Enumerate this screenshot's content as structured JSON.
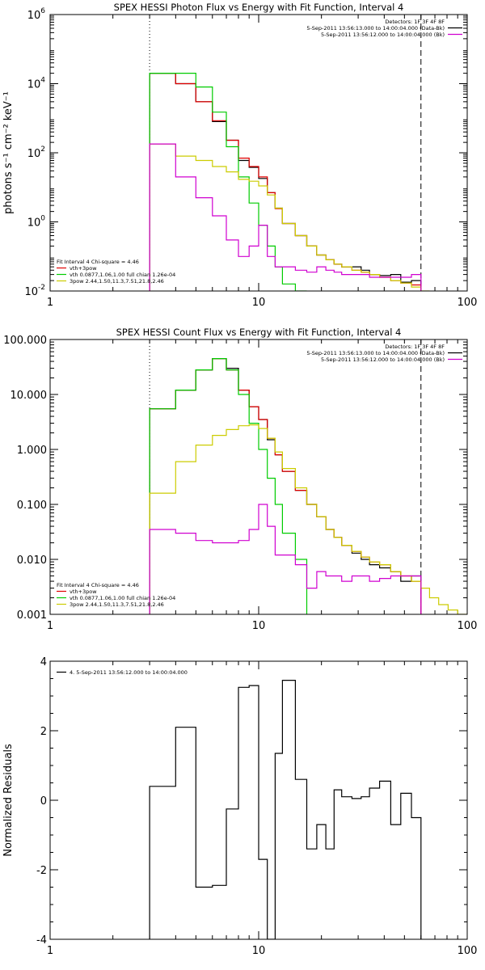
{
  "chart_data": [
    {
      "id": "photon",
      "type": "line",
      "step": true,
      "title": "SPEX HESSI Photon Flux vs Energy with Fit Function, Interval 4",
      "ylabel": "photons s⁻¹ cm⁻² keV⁻¹",
      "xlabel": "",
      "xscale": "log",
      "yscale": "log",
      "xlim": [
        1,
        100
      ],
      "ylim": [
        0.01,
        1000000
      ],
      "x_ticks": [
        {
          "value": 1,
          "label": "1"
        },
        {
          "value": 10,
          "label": "10"
        },
        {
          "value": 100,
          "label": "100"
        }
      ],
      "y_ticks": [
        {
          "value": 0.01,
          "base": "10",
          "exp": "-2"
        },
        {
          "value": 1,
          "base": "10",
          "exp": "0"
        },
        {
          "value": 100,
          "base": "10",
          "exp": "2"
        },
        {
          "value": 10000,
          "base": "10",
          "exp": "4"
        },
        {
          "value": 1000000,
          "base": "10",
          "exp": "6"
        }
      ],
      "vlines": [
        {
          "x": 3,
          "style": "dotted"
        },
        {
          "x": 60,
          "style": "dashed"
        }
      ],
      "legend_top": {
        "placement": "top-right",
        "header": "Detectors: 1F 3F 4F 8F",
        "entries": [
          {
            "text": "5-Sep-2011 13:56:13.000 to 14:00:04.000 (Data-Bk)",
            "color": "#000000"
          },
          {
            "text": "5-Sep-2011 13:56:12.000 to 14:00:04.000 (Bk)",
            "color": "#d000d0"
          }
        ]
      },
      "legend_bottom": {
        "placement": "bottom-left",
        "header": "Fit Interval 4   Chi-square = 4.46",
        "entries": [
          {
            "text": "vth+3pow",
            "color": "#e00000"
          },
          {
            "text": "vth 0.0877,1.06,1.00  full chian 1.26e-04",
            "color": "#00cc00"
          },
          {
            "text": "3pow 2.44,1.50,11.3,7.51,21.8,2.46",
            "color": "#cccc00"
          }
        ]
      },
      "series": [
        {
          "color": "#000000",
          "edges": [
            3,
            4,
            5,
            6,
            7,
            8,
            9,
            10,
            11,
            12,
            13,
            15,
            17,
            19,
            21,
            23,
            25,
            28,
            31,
            34,
            38,
            43,
            48,
            54,
            60
          ],
          "values": [
            20000,
            10000,
            3000,
            800,
            230,
            60,
            38,
            18,
            7,
            2.5,
            0.9,
            0.4,
            0.2,
            0.11,
            0.08,
            0.06,
            0.05,
            0.05,
            0.04,
            0.03,
            0.028,
            0.03,
            0.018,
            0.02
          ]
        },
        {
          "color": "#e00000",
          "edges": [
            3,
            4,
            5,
            6,
            7,
            8,
            9,
            10,
            11,
            12,
            13,
            15,
            17,
            19,
            21,
            23,
            25,
            28,
            31,
            34,
            38,
            43,
            48,
            54,
            60
          ],
          "values": [
            20000,
            10000,
            3000,
            850,
            230,
            70,
            40,
            20,
            7,
            2.4,
            0.9,
            0.4,
            0.2,
            0.11,
            0.08,
            0.06,
            0.05,
            0.04,
            0.035,
            0.03,
            0.025,
            0.02,
            0.017,
            0.015
          ]
        },
        {
          "color": "#00cc00",
          "edges": [
            3,
            4,
            5,
            6,
            7,
            8,
            9,
            10,
            11,
            12,
            13,
            15,
            17
          ],
          "values": [
            20000,
            20000,
            8000,
            1500,
            150,
            20,
            3.5,
            0.8,
            0.2,
            0.05,
            0.016,
            0.01
          ]
        },
        {
          "color": "#cccc00",
          "edges": [
            3,
            4,
            5,
            6,
            7,
            8,
            9,
            10,
            11,
            12,
            13,
            15,
            17,
            19,
            21,
            23,
            25,
            28,
            31,
            34,
            38,
            43,
            48,
            54,
            60,
            66
          ],
          "values": [
            180,
            80,
            60,
            40,
            28,
            17,
            15,
            11,
            6,
            2.5,
            0.9,
            0.4,
            0.2,
            0.11,
            0.08,
            0.06,
            0.05,
            0.04,
            0.035,
            0.03,
            0.025,
            0.02,
            0.017,
            0.013,
            0.01
          ]
        },
        {
          "color": "#d000d0",
          "edges": [
            3,
            4,
            5,
            6,
            7,
            8,
            9,
            10,
            11,
            12,
            13,
            15,
            17,
            19,
            21,
            23,
            25,
            28,
            31,
            34,
            38,
            43,
            48,
            54,
            60
          ],
          "values": [
            180,
            20,
            5,
            1.5,
            0.3,
            0.1,
            0.2,
            0.8,
            0.1,
            0.05,
            0.05,
            0.04,
            0.035,
            0.05,
            0.04,
            0.035,
            0.03,
            0.03,
            0.03,
            0.025,
            0.025,
            0.025,
            0.025,
            0.03
          ]
        }
      ]
    },
    {
      "id": "count",
      "type": "line",
      "step": true,
      "title": "SPEX HESSI Count Flux vs Energy with Fit Function, Interval 4",
      "ylabel": "",
      "xlabel": "",
      "xscale": "log",
      "yscale": "log",
      "xlim": [
        1,
        100
      ],
      "ylim": [
        0.001,
        100
      ],
      "x_ticks": [
        {
          "value": 1,
          "label": "1"
        },
        {
          "value": 10,
          "label": "10"
        },
        {
          "value": 100,
          "label": "100"
        }
      ],
      "y_ticks": [
        {
          "value": 0.001,
          "label": "0.001"
        },
        {
          "value": 0.01,
          "label": "0.010"
        },
        {
          "value": 0.1,
          "label": "0.100"
        },
        {
          "value": 1,
          "label": "1.000"
        },
        {
          "value": 10,
          "label": "10.000"
        },
        {
          "value": 100,
          "label": "100.000"
        }
      ],
      "vlines": [
        {
          "x": 3,
          "style": "dotted"
        },
        {
          "x": 60,
          "style": "dashed"
        }
      ],
      "legend_top": {
        "placement": "top-right",
        "header": "Detectors: 1F 3F 4F 8F",
        "entries": [
          {
            "text": "5-Sep-2011 13:56:13.000 to 14:00:04.000 (Data-Bk)",
            "color": "#000000"
          },
          {
            "text": "5-Sep-2011 13:56:12.000 to 14:00:04.000 (Bk)",
            "color": "#d000d0"
          }
        ]
      },
      "legend_bottom": {
        "placement": "bottom-left",
        "header": "Fit Interval 4   Chi-square = 4.46",
        "entries": [
          {
            "text": "vth+3pow",
            "color": "#e00000"
          },
          {
            "text": "vth 0.0877,1.06,1.00  full chian 1.26e-04",
            "color": "#00cc00"
          },
          {
            "text": "3pow 2.44,1.50,11.3,7.51,21.8,2.46",
            "color": "#cccc00"
          }
        ]
      },
      "series": [
        {
          "color": "#000000",
          "edges": [
            3,
            4,
            5,
            6,
            7,
            8,
            9,
            10,
            11,
            12,
            13,
            15,
            17,
            19,
            21,
            23,
            25,
            28,
            31,
            34,
            38,
            43,
            48,
            54,
            60
          ],
          "values": [
            5.5,
            12,
            28,
            45,
            30,
            12,
            6,
            3.5,
            1.5,
            0.8,
            0.4,
            0.18,
            0.1,
            0.06,
            0.035,
            0.025,
            0.018,
            0.013,
            0.01,
            0.008,
            0.007,
            0.006,
            0.004,
            0.005
          ]
        },
        {
          "color": "#e00000",
          "edges": [
            3,
            4,
            5,
            6,
            7,
            8,
            9,
            10,
            11,
            12,
            13,
            15,
            17,
            19,
            21,
            23,
            25,
            28,
            31,
            34,
            38,
            43,
            48,
            54,
            60
          ],
          "values": [
            5.5,
            12,
            28,
            45,
            28,
            12,
            6,
            3.5,
            1.6,
            0.8,
            0.4,
            0.18,
            0.1,
            0.06,
            0.035,
            0.025,
            0.018,
            0.014,
            0.011,
            0.009,
            0.008,
            0.006,
            0.005,
            0.004
          ]
        },
        {
          "color": "#00cc00",
          "edges": [
            3,
            4,
            5,
            6,
            7,
            8,
            9,
            10,
            11,
            12,
            13,
            15,
            17
          ],
          "values": [
            5.5,
            12,
            28,
            45,
            28,
            10,
            3,
            1,
            0.3,
            0.1,
            0.03,
            0.01
          ]
        },
        {
          "color": "#cccc00",
          "edges": [
            3,
            4,
            5,
            6,
            7,
            8,
            9,
            10,
            11,
            12,
            13,
            15,
            17,
            19,
            21,
            23,
            25,
            28,
            31,
            34,
            38,
            43,
            48,
            54,
            60,
            66,
            73,
            81,
            90,
            100
          ],
          "values": [
            0.16,
            0.6,
            1.2,
            1.8,
            2.3,
            2.7,
            2.8,
            2.4,
            1.6,
            0.9,
            0.45,
            0.2,
            0.1,
            0.06,
            0.035,
            0.025,
            0.018,
            0.014,
            0.011,
            0.009,
            0.008,
            0.006,
            0.005,
            0.004,
            0.003,
            0.002,
            0.0015,
            0.0012,
            0.001
          ]
        },
        {
          "color": "#d000d0",
          "edges": [
            3,
            4,
            5,
            6,
            7,
            8,
            9,
            10,
            11,
            12,
            13,
            15,
            17,
            19,
            21,
            23,
            25,
            28,
            31,
            34,
            38,
            43,
            48,
            54,
            60
          ],
          "values": [
            0.035,
            0.03,
            0.022,
            0.02,
            0.02,
            0.022,
            0.035,
            0.1,
            0.04,
            0.012,
            0.012,
            0.008,
            0.003,
            0.006,
            0.005,
            0.005,
            0.004,
            0.005,
            0.005,
            0.004,
            0.0045,
            0.005,
            0.005,
            0.005
          ]
        }
      ]
    },
    {
      "id": "residuals",
      "type": "line",
      "step": true,
      "title": "",
      "ylabel": "Normalized Residuals",
      "xlabel": "",
      "xscale": "log",
      "yscale": "linear",
      "xlim": [
        1,
        100
      ],
      "ylim": [
        -4,
        4
      ],
      "x_ticks": [
        {
          "value": 1,
          "label": "1"
        },
        {
          "value": 10,
          "label": "10"
        },
        {
          "value": 100,
          "label": "100"
        }
      ],
      "y_ticks": [
        {
          "value": -4,
          "label": "-4"
        },
        {
          "value": -2,
          "label": "-2"
        },
        {
          "value": 0,
          "label": "0"
        },
        {
          "value": 2,
          "label": "2"
        },
        {
          "value": 4,
          "label": "4"
        }
      ],
      "vlines": [],
      "legend_top": {
        "placement": "top-left",
        "header": "",
        "entries": [
          {
            "text": "4.  5-Sep-2011 13:56:12.000 to 14:00:04.000",
            "color": "#000000"
          }
        ]
      },
      "series": [
        {
          "color": "#000000",
          "edges": [
            3,
            4,
            5,
            6,
            7,
            8,
            9,
            10,
            11,
            12,
            13,
            15,
            17,
            19,
            21,
            23,
            25,
            28,
            31,
            34,
            38,
            43,
            48,
            54,
            60
          ],
          "values": [
            0.4,
            2.1,
            -2.5,
            -2.45,
            -0.25,
            3.25,
            3.3,
            -1.7,
            -4.0,
            1.35,
            3.45,
            0.6,
            -1.4,
            -0.7,
            -1.4,
            0.3,
            0.1,
            0.05,
            0.1,
            0.35,
            0.55,
            -0.7,
            0.2,
            -0.5
          ]
        }
      ]
    }
  ]
}
